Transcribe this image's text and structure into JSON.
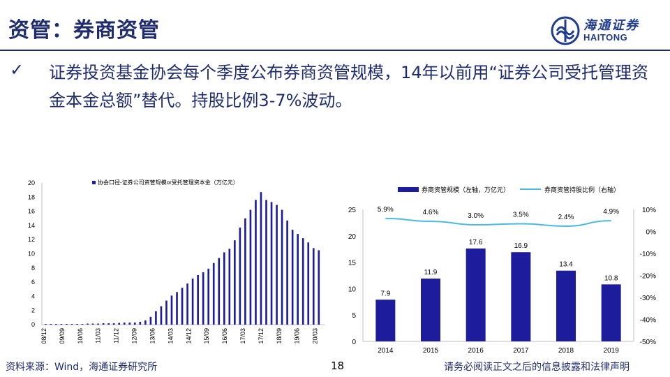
{
  "header": {
    "title": "资管：券商资管",
    "logo_cn": "海通证券",
    "logo_en": "HAITONG"
  },
  "bullet": {
    "mark": "✓",
    "text": "证券投资基金协会每个季度公布券商资管规模，14年以前用“证券公司受托管理资金本金总额”替代。持股比例3-7%波动。"
  },
  "footer": {
    "source": "资料来源：Wind，海通证券研究所",
    "page": "18",
    "disclaimer": "请务必阅读正文之后的信息披露和法律声明"
  },
  "colors": {
    "navy": "#1f2d6e",
    "bar": "#1c1c9c",
    "line": "#4cb8e6"
  },
  "chart_data": [
    {
      "type": "bar",
      "title": "",
      "legend": "协会口径-证券公司资管规模or受托管理资本金（万亿元）",
      "ylim": [
        0,
        20
      ],
      "yticks": [
        "0",
        "2",
        "4",
        "6",
        "8",
        "10",
        "12",
        "14",
        "16",
        "18",
        "20"
      ],
      "tick_labels": [
        "08/12",
        "09/09",
        "10/06",
        "11/03",
        "11/12",
        "12/09",
        "13/06",
        "14/03",
        "14/12",
        "15/09",
        "16/06",
        "17/03",
        "17/12",
        "18/09",
        "19/06",
        "20/03"
      ],
      "values": [
        0.1,
        0.1,
        0.1,
        0.1,
        0.1,
        0.1,
        0.1,
        0.1,
        0.15,
        0.15,
        0.15,
        0.2,
        0.2,
        0.2,
        0.25,
        0.3,
        0.3,
        0.3,
        0.4,
        0.6,
        1.1,
        1.9,
        2.6,
        3.4,
        4.1,
        4.6,
        5.2,
        5.8,
        6.5,
        7.0,
        7.4,
        7.9,
        8.7,
        9.4,
        10.2,
        10.7,
        11.9,
        13.7,
        15.0,
        16.2,
        17.6,
        18.7,
        17.6,
        17.3,
        16.9,
        16.2,
        14.7,
        13.4,
        12.8,
        12.2,
        11.6,
        10.8,
        10.5
      ]
    },
    {
      "type": "bar+line",
      "categories": [
        "2014",
        "2015",
        "2016",
        "2017",
        "2018",
        "2019"
      ],
      "series": [
        {
          "name": "券商资管规模（左轴，万亿元）",
          "type": "bar",
          "values": [
            7.9,
            11.9,
            17.6,
            16.9,
            13.4,
            10.8
          ],
          "labels": [
            "7.9",
            "11.9",
            "17.6",
            "16.9",
            "13.4",
            "10.8"
          ]
        },
        {
          "name": "券商资管持股比例（右轴）",
          "type": "line",
          "values": [
            5.9,
            4.6,
            3.0,
            3.5,
            2.4,
            4.9
          ],
          "labels": [
            "5.9%",
            "4.6%",
            "3.0%",
            "3.5%",
            "2.4%",
            "4.9%"
          ]
        }
      ],
      "ylim_left": [
        0,
        25
      ],
      "yticks_left": [
        "0",
        "5",
        "10",
        "15",
        "20",
        "25"
      ],
      "ylim_right": [
        -50,
        10
      ],
      "yticks_right": [
        "10%",
        "0%",
        "-10%",
        "-20%",
        "-30%",
        "-40%",
        "-50%"
      ]
    }
  ]
}
